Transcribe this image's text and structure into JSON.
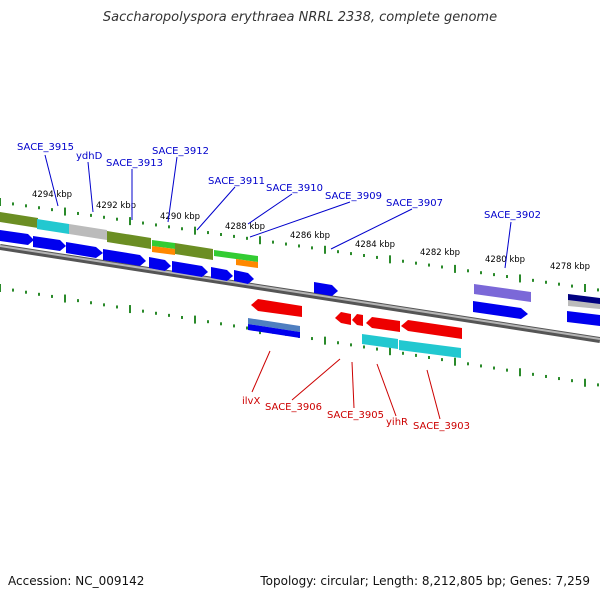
{
  "title": "Saccharopolyspora erythraea NRRL 2338, complete genome",
  "footer": {
    "accession": "Accession: NC_009142",
    "summary": "Topology: circular; Length: 8,212,805 bp; Genes: 7,259"
  },
  "colors": {
    "backbone": "#888888",
    "tick": "#2a8a2a",
    "forward_label": "#0000cc",
    "reverse_label": "#cc0000",
    "cds": "#0000ee",
    "olive": "#6b8e23",
    "cyan": "#22c8d0",
    "gray": "#bbbbbb",
    "green": "#33cc33",
    "orange": "#ff8800",
    "purple": "#7b68d8",
    "navy": "#000080",
    "red": "#ee0000"
  },
  "map": {
    "scale_labels": [
      "4294 kbp",
      "4292 kbp",
      "4290 kbp",
      "4288 kbp",
      "4286 kbp",
      "4284 kbp",
      "4282 kbp",
      "4280 kbp",
      "4278 kbp"
    ],
    "forward_genes": [
      "SACE_3915",
      "ydhD",
      "SACE_3913",
      "SACE_3912",
      "SACE_3911",
      "SACE_3910",
      "SACE_3909",
      "SACE_3907",
      "SACE_3902"
    ],
    "reverse_genes": [
      "ilvX",
      "SACE_3906",
      "SACE_3905",
      "yihR",
      "SACE_3903"
    ]
  }
}
